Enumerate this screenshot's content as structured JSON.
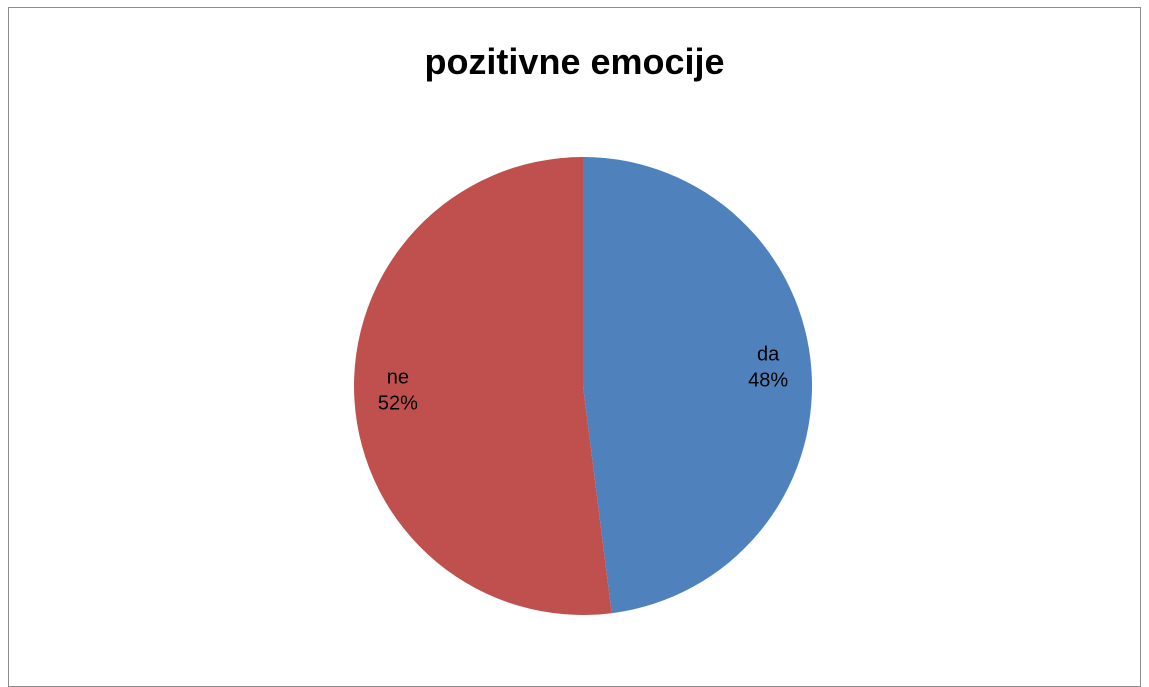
{
  "chart_data": {
    "type": "pie",
    "title": "pozitivne emocije",
    "categories": [
      "da",
      "ne"
    ],
    "values": [
      48,
      52
    ],
    "labels": [
      {
        "category": "da",
        "percent": "48%"
      },
      {
        "category": "ne",
        "percent": "52%"
      }
    ],
    "colors": [
      "#4F81BD",
      "#C0504D"
    ],
    "start_angle": "12 o'clock",
    "direction": "clockwise"
  }
}
